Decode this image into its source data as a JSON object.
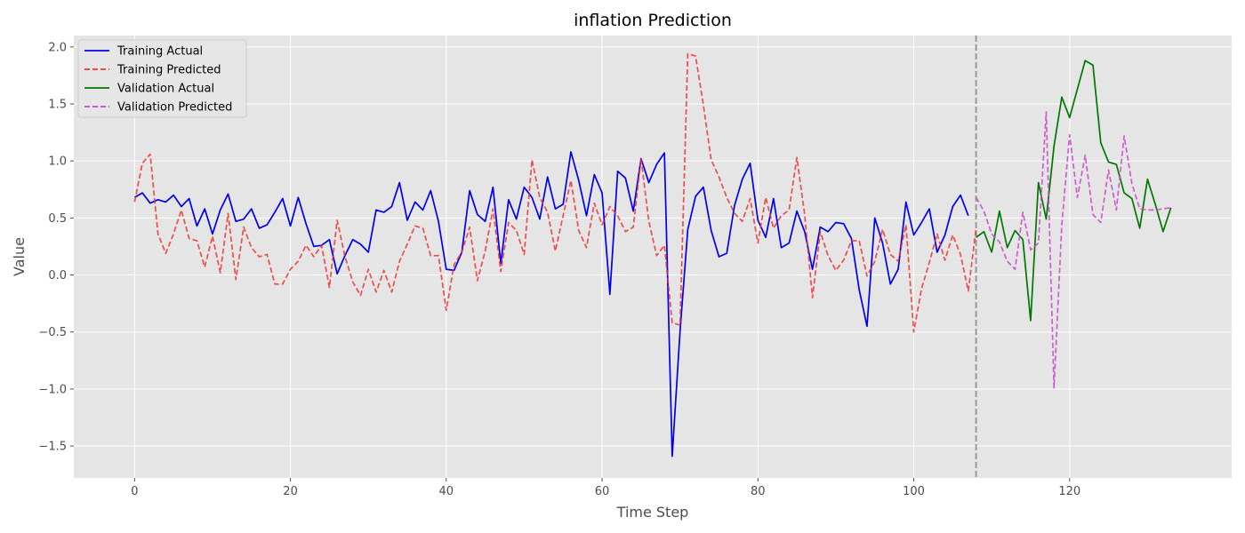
{
  "chart_data": {
    "type": "line",
    "title": "inflation Prediction",
    "xlabel": "Time Step",
    "ylabel": "Value",
    "xlim": [
      -7.8,
      140.8
    ],
    "ylim": [
      -1.78,
      2.1
    ],
    "x_ticks": [
      0,
      20,
      40,
      60,
      80,
      100,
      120
    ],
    "y_ticks": [
      -1.5,
      -1.0,
      -0.5,
      0.0,
      0.5,
      1.0,
      1.5,
      2.0
    ],
    "y_tick_labels": [
      "−1.5",
      "−1.0",
      "−0.5",
      "0.0",
      "0.5",
      "1.0",
      "1.5",
      "2.0"
    ],
    "grid": true,
    "legend_position": "top-left",
    "split_line_x": 108,
    "colors": {
      "plot_background": "#e5e5e5",
      "grid": "#ffffff",
      "split_line": "#999999"
    },
    "series": [
      {
        "name": "Training Actual",
        "color": "#0000ee",
        "dashed": false,
        "x_start": 0,
        "values": [
          0.68,
          0.72,
          0.63,
          0.66,
          0.64,
          0.7,
          0.6,
          0.67,
          0.43,
          0.58,
          0.36,
          0.57,
          0.71,
          0.47,
          0.49,
          0.58,
          0.41,
          0.44,
          0.55,
          0.67,
          0.43,
          0.68,
          0.45,
          0.25,
          0.26,
          0.31,
          0.01,
          0.17,
          0.31,
          0.27,
          0.2,
          0.57,
          0.55,
          0.6,
          0.81,
          0.48,
          0.64,
          0.57,
          0.74,
          0.47,
          0.05,
          0.04,
          0.2,
          0.74,
          0.53,
          0.47,
          0.77,
          0.1,
          0.66,
          0.49,
          0.77,
          0.68,
          0.49,
          0.86,
          0.58,
          0.62,
          1.08,
          0.83,
          0.52,
          0.88,
          0.72,
          -0.17,
          0.91,
          0.85,
          0.56,
          1.02,
          0.81,
          0.97,
          1.07,
          -1.59,
          -0.5,
          0.4,
          0.69,
          0.77,
          0.39,
          0.16,
          0.19,
          0.61,
          0.84,
          0.98,
          0.48,
          0.33,
          0.67,
          0.24,
          0.28,
          0.56,
          0.38,
          0.05,
          0.42,
          0.38,
          0.46,
          0.45,
          0.32,
          -0.13,
          -0.45,
          0.5,
          0.28,
          -0.08,
          0.05,
          0.64,
          0.35,
          0.46,
          0.58,
          0.2,
          0.35,
          0.6,
          0.7,
          0.52
        ]
      },
      {
        "name": "Training Predicted",
        "color": "#ee3333",
        "dashed": true,
        "x_start": 0,
        "values": [
          0.64,
          0.98,
          1.06,
          0.36,
          0.19,
          0.36,
          0.57,
          0.32,
          0.3,
          0.07,
          0.34,
          0.02,
          0.54,
          -0.04,
          0.42,
          0.24,
          0.16,
          0.18,
          -0.08,
          -0.08,
          0.05,
          0.12,
          0.26,
          0.16,
          0.26,
          -0.11,
          0.48,
          0.16,
          -0.06,
          -0.18,
          0.05,
          -0.15,
          0.04,
          -0.15,
          0.12,
          0.27,
          0.43,
          0.41,
          0.17,
          0.17,
          -0.31,
          0.09,
          0.2,
          0.42,
          -0.05,
          0.21,
          0.58,
          0.03,
          0.46,
          0.39,
          0.18,
          1.01,
          0.68,
          0.55,
          0.21,
          0.52,
          0.83,
          0.39,
          0.24,
          0.63,
          0.44,
          0.6,
          0.52,
          0.38,
          0.42,
          1.02,
          0.47,
          0.17,
          0.26,
          -0.42,
          -0.44,
          1.94,
          1.92,
          1.49,
          1.01,
          0.86,
          0.68,
          0.54,
          0.47,
          0.67,
          0.28,
          0.68,
          0.41,
          0.52,
          0.57,
          1.03,
          0.53,
          -0.2,
          0.38,
          0.17,
          0.04,
          0.13,
          0.3,
          0.3,
          -0.01,
          0.12,
          0.4,
          0.18,
          0.12,
          0.44,
          -0.5,
          -0.12,
          0.11,
          0.36,
          0.13,
          0.35,
          0.18,
          -0.14,
          0.41
        ]
      },
      {
        "name": "Validation Actual",
        "color": "#007700",
        "dashed": false,
        "x_start": 108,
        "values": [
          0.33,
          0.38,
          0.2,
          0.56,
          0.24,
          0.39,
          0.31,
          -0.4,
          0.81,
          0.49,
          1.13,
          1.56,
          1.38,
          1.63,
          1.88,
          1.84,
          1.16,
          0.99,
          0.97,
          0.72,
          0.67,
          0.41,
          0.84,
          0.62,
          0.38,
          0.59
        ]
      },
      {
        "name": "Validation Predicted",
        "color": "#cc44cc",
        "dashed": true,
        "x_start": 108,
        "values": [
          0.68,
          0.56,
          0.36,
          0.29,
          0.12,
          0.05,
          0.55,
          0.22,
          0.28,
          1.43,
          -0.99,
          0.44,
          1.23,
          0.68,
          1.05,
          0.53,
          0.46,
          0.92,
          0.57,
          1.22,
          0.8,
          0.58,
          0.57,
          0.57,
          0.58,
          0.59
        ]
      }
    ]
  }
}
